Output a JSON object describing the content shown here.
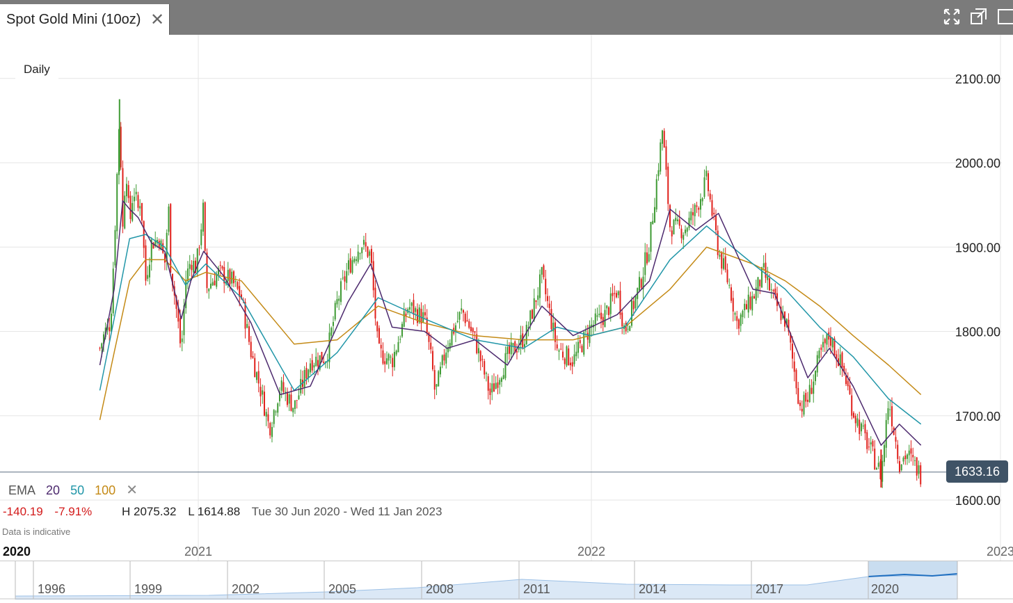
{
  "tab": {
    "title": "Spot Gold Mini (10oz)",
    "close_icon": "close-icon"
  },
  "window_controls": [
    "expand-icon",
    "popout-icon",
    "dock-icon"
  ],
  "period": "Daily",
  "last_price": "1633.16",
  "legend": {
    "label": "EMA",
    "periods": [
      "20",
      "50",
      "100"
    ],
    "remove_icon": "close-icon"
  },
  "stats": {
    "change": "-140.19",
    "change_pct": "-7.91%",
    "high": "H 2075.32",
    "low": "L 1614.88",
    "range": "Tue 30 Jun 2020 - Wed 11 Jan 2023"
  },
  "note": "Data is indicative",
  "colors": {
    "up": "#3e9a33",
    "down": "#e0201b",
    "ema20": "#4d2a6e",
    "ema50": "#2196a8",
    "ema100": "#c48a16",
    "axis_text": "#222222",
    "grid": "#e6e6e6",
    "price_tag": "#3f5366"
  },
  "navigator": {
    "labels": [
      "1996",
      "1999",
      "2002",
      "2005",
      "2008",
      "2011",
      "2014",
      "2017",
      "2020"
    ],
    "selected": "2020"
  },
  "chart_data": {
    "type": "candlestick",
    "x_ticks": [
      "2020",
      "2021",
      "2022",
      "2023"
    ],
    "y_ticks": [
      "1600.00",
      "1700.00",
      "1800.00",
      "1900.00",
      "2000.00",
      "2100.00"
    ],
    "ylim": [
      1560,
      2150
    ],
    "grid": true,
    "high": 2075.32,
    "low": 1614.88,
    "last": 1633.16,
    "close_path": [
      [
        "2020-06-30",
        1780
      ],
      [
        "2020-07-10",
        1800
      ],
      [
        "2020-07-20",
        1810
      ],
      [
        "2020-07-27",
        1900
      ],
      [
        "2020-08-06",
        2060
      ],
      [
        "2020-08-12",
        1920
      ],
      [
        "2020-08-18",
        2000
      ],
      [
        "2020-08-25",
        1925
      ],
      [
        "2020-09-01",
        1970
      ],
      [
        "2020-09-10",
        1945
      ],
      [
        "2020-09-15",
        1960
      ],
      [
        "2020-09-24",
        1860
      ],
      [
        "2020-10-05",
        1905
      ],
      [
        "2020-10-20",
        1910
      ],
      [
        "2020-10-30",
        1880
      ],
      [
        "2020-11-06",
        1950
      ],
      [
        "2020-11-10",
        1880
      ],
      [
        "2020-11-24",
        1810
      ],
      [
        "2020-11-30",
        1775
      ],
      [
        "2020-12-08",
        1860
      ],
      [
        "2020-12-18",
        1885
      ],
      [
        "2020-12-28",
        1875
      ],
      [
        "2021-01-06",
        1950
      ],
      [
        "2021-01-08",
        1850
      ],
      [
        "2021-01-20",
        1870
      ],
      [
        "2021-02-01",
        1860
      ],
      [
        "2021-02-10",
        1840
      ],
      [
        "2021-02-19",
        1775
      ],
      [
        "2021-03-01",
        1725
      ],
      [
        "2021-03-08",
        1685
      ],
      [
        "2021-03-18",
        1735
      ],
      [
        "2021-03-31",
        1710
      ],
      [
        "2021-04-15",
        1765
      ],
      [
        "2021-04-30",
        1770
      ],
      [
        "2021-05-10",
        1835
      ],
      [
        "2021-05-20",
        1875
      ],
      [
        "2021-06-01",
        1905
      ],
      [
        "2021-06-10",
        1890
      ],
      [
        "2021-06-17",
        1775
      ],
      [
        "2021-06-30",
        1765
      ],
      [
        "2021-07-15",
        1830
      ],
      [
        "2021-07-30",
        1815
      ],
      [
        "2021-08-06",
        1760
      ],
      [
        "2021-08-09",
        1725
      ],
      [
        "2021-08-20",
        1785
      ],
      [
        "2021-09-03",
        1825
      ],
      [
        "2021-09-15",
        1790
      ],
      [
        "2021-09-29",
        1725
      ],
      [
        "2021-10-15",
        1770
      ],
      [
        "2021-11-01",
        1795
      ],
      [
        "2021-11-16",
        1865
      ],
      [
        "2021-11-30",
        1780
      ],
      [
        "2021-12-15",
        1765
      ],
      [
        "2021-12-31",
        1805
      ],
      [
        "2022-01-14",
        1820
      ],
      [
        "2022-01-25",
        1850
      ],
      [
        "2022-02-01",
        1800
      ],
      [
        "2022-02-15",
        1855
      ],
      [
        "2022-02-24",
        1905
      ],
      [
        "2022-03-08",
        2040
      ],
      [
        "2022-03-15",
        1925
      ],
      [
        "2022-03-28",
        1920
      ],
      [
        "2022-04-08",
        1945
      ],
      [
        "2022-04-18",
        1980
      ],
      [
        "2022-04-29",
        1895
      ],
      [
        "2022-05-10",
        1850
      ],
      [
        "2022-05-16",
        1810
      ],
      [
        "2022-05-31",
        1840
      ],
      [
        "2022-06-10",
        1870
      ],
      [
        "2022-06-20",
        1835
      ],
      [
        "2022-07-01",
        1810
      ],
      [
        "2022-07-14",
        1710
      ],
      [
        "2022-07-21",
        1720
      ],
      [
        "2022-08-01",
        1770
      ],
      [
        "2022-08-10",
        1795
      ],
      [
        "2022-08-24",
        1750
      ],
      [
        "2022-09-01",
        1705
      ],
      [
        "2022-09-15",
        1665
      ],
      [
        "2022-09-27",
        1630
      ],
      [
        "2022-10-04",
        1720
      ],
      [
        "2022-10-14",
        1645
      ],
      [
        "2022-10-21",
        1655
      ],
      [
        "2022-11-03",
        1630
      ]
    ],
    "ema20_path": [
      [
        "2020-06-30",
        1760
      ],
      [
        "2020-07-27",
        1850
      ],
      [
        "2020-08-12",
        1955
      ],
      [
        "2020-08-25",
        1945
      ],
      [
        "2020-09-10",
        1935
      ],
      [
        "2020-10-05",
        1905
      ],
      [
        "2020-10-30",
        1895
      ],
      [
        "2020-11-30",
        1815
      ],
      [
        "2020-12-18",
        1860
      ],
      [
        "2021-01-06",
        1895
      ],
      [
        "2021-01-25",
        1865
      ],
      [
        "2021-02-19",
        1810
      ],
      [
        "2021-03-18",
        1725
      ],
      [
        "2021-04-15",
        1735
      ],
      [
        "2021-05-20",
        1835
      ],
      [
        "2021-06-10",
        1880
      ],
      [
        "2021-06-30",
        1805
      ],
      [
        "2021-07-30",
        1800
      ],
      [
        "2021-08-20",
        1780
      ],
      [
        "2021-09-15",
        1790
      ],
      [
        "2021-10-15",
        1760
      ],
      [
        "2021-11-16",
        1830
      ],
      [
        "2021-12-15",
        1795
      ],
      [
        "2022-01-25",
        1820
      ],
      [
        "2022-02-24",
        1860
      ],
      [
        "2022-03-15",
        1945
      ],
      [
        "2022-04-08",
        1920
      ],
      [
        "2022-04-29",
        1940
      ],
      [
        "2022-05-31",
        1850
      ],
      [
        "2022-06-20",
        1845
      ],
      [
        "2022-07-21",
        1745
      ],
      [
        "2022-08-10",
        1780
      ],
      [
        "2022-09-01",
        1735
      ],
      [
        "2022-09-27",
        1665
      ],
      [
        "2022-10-14",
        1690
      ],
      [
        "2022-11-03",
        1665
      ]
    ],
    "ema50_path": [
      [
        "2020-06-30",
        1730
      ],
      [
        "2020-07-27",
        1815
      ],
      [
        "2020-08-25",
        1910
      ],
      [
        "2020-09-24",
        1915
      ],
      [
        "2020-10-30",
        1900
      ],
      [
        "2020-12-08",
        1855
      ],
      [
        "2021-01-08",
        1880
      ],
      [
        "2021-02-10",
        1840
      ],
      [
        "2021-03-31",
        1730
      ],
      [
        "2021-05-10",
        1775
      ],
      [
        "2021-06-17",
        1840
      ],
      [
        "2021-07-30",
        1815
      ],
      [
        "2021-09-15",
        1790
      ],
      [
        "2021-10-30",
        1780
      ],
      [
        "2021-11-30",
        1805
      ],
      [
        "2021-12-31",
        1795
      ],
      [
        "2022-02-01",
        1805
      ],
      [
        "2022-03-15",
        1885
      ],
      [
        "2022-04-18",
        1925
      ],
      [
        "2022-05-31",
        1880
      ],
      [
        "2022-06-30",
        1850
      ],
      [
        "2022-08-01",
        1805
      ],
      [
        "2022-09-01",
        1770
      ],
      [
        "2022-10-04",
        1720
      ],
      [
        "2022-11-03",
        1690
      ]
    ],
    "ema100_path": [
      [
        "2020-06-30",
        1695
      ],
      [
        "2020-07-27",
        1775
      ],
      [
        "2020-08-25",
        1860
      ],
      [
        "2020-09-24",
        1885
      ],
      [
        "2020-10-30",
        1885
      ],
      [
        "2020-12-08",
        1860
      ],
      [
        "2021-01-08",
        1870
      ],
      [
        "2021-02-10",
        1860
      ],
      [
        "2021-03-31",
        1785
      ],
      [
        "2021-05-10",
        1790
      ],
      [
        "2021-06-17",
        1830
      ],
      [
        "2021-07-30",
        1810
      ],
      [
        "2021-09-15",
        1795
      ],
      [
        "2021-10-30",
        1790
      ],
      [
        "2021-12-15",
        1790
      ],
      [
        "2022-02-01",
        1805
      ],
      [
        "2022-03-15",
        1850
      ],
      [
        "2022-04-18",
        1900
      ],
      [
        "2022-05-31",
        1880
      ],
      [
        "2022-06-30",
        1860
      ],
      [
        "2022-08-01",
        1830
      ],
      [
        "2022-09-01",
        1795
      ],
      [
        "2022-10-04",
        1760
      ],
      [
        "2022-11-03",
        1725
      ]
    ]
  }
}
